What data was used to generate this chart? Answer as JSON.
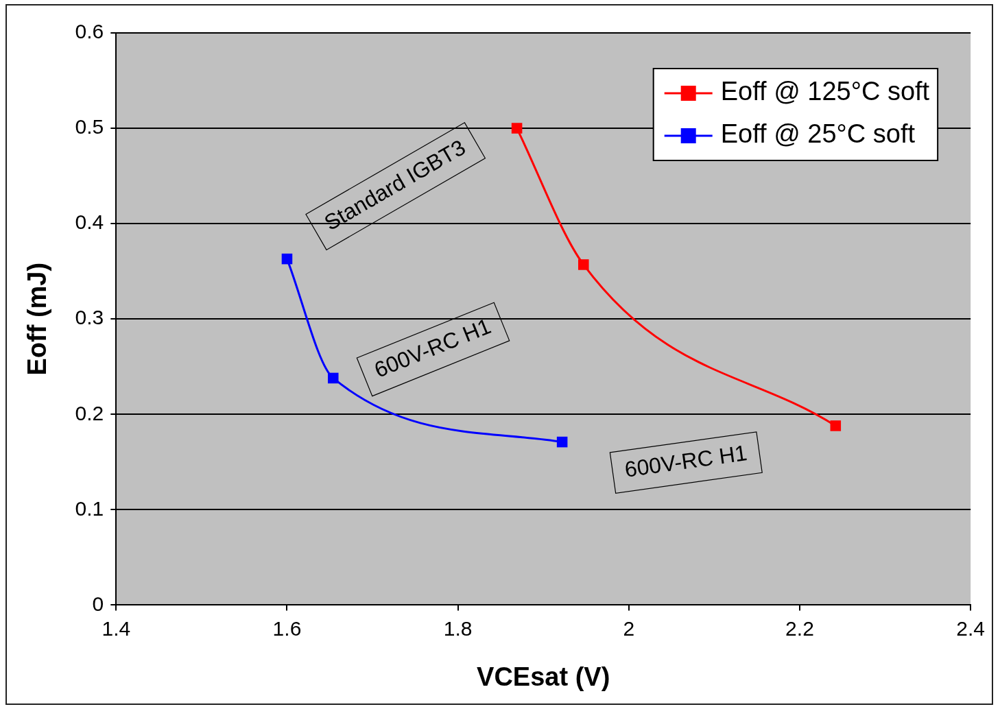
{
  "chart_data": {
    "type": "line",
    "xlabel": "VCEsat (V)",
    "ylabel": "Eoff (mJ)",
    "xlim": [
      1.4,
      2.4
    ],
    "xticks": [
      1.4,
      1.6,
      1.8,
      2,
      2.2,
      2.4
    ],
    "ylim": [
      0,
      0.6
    ],
    "yticks": [
      0,
      0.1,
      0.2,
      0.3,
      0.4,
      0.5,
      0.6
    ],
    "grid": "y",
    "legend": "top right",
    "marker": "square",
    "line_style": "solid",
    "series": [
      {
        "name": "Eoff @ 125°C soft",
        "color": "#ff0000",
        "x": [
          1.869,
          1.947,
          2.242
        ],
        "values": [
          0.5,
          0.357,
          0.188
        ]
      },
      {
        "name": "Eoff @ 25°C soft",
        "color": "#0000ff",
        "x": [
          1.6,
          1.654,
          1.922
        ],
        "values": [
          0.363,
          0.238,
          0.171
        ]
      }
    ],
    "annotations": [
      "Standard IGBT3",
      "600V-RC H1",
      "600V-RC H1"
    ]
  }
}
